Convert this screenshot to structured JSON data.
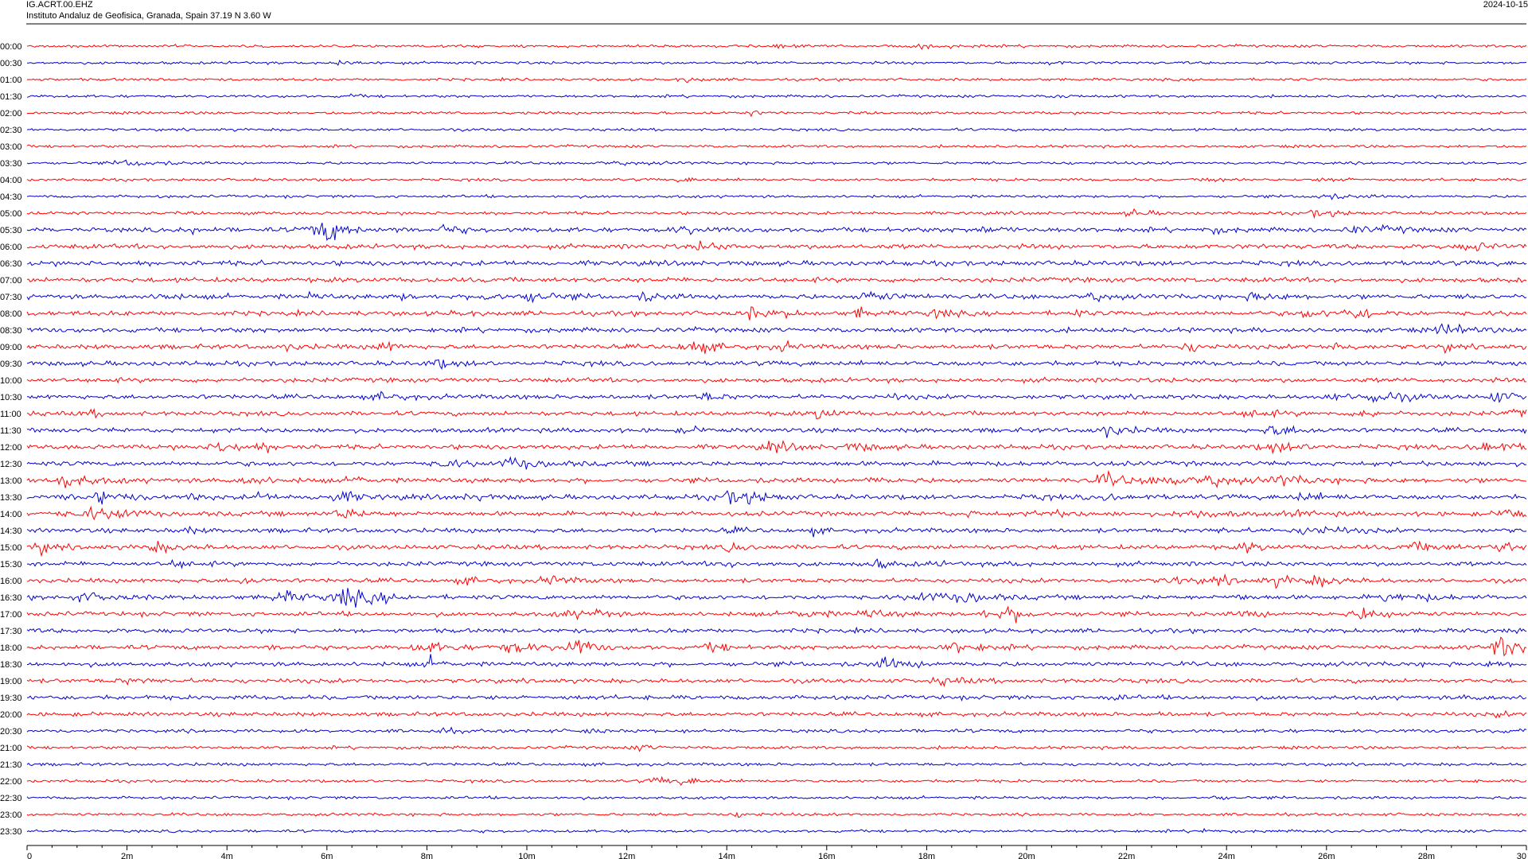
{
  "header": {
    "station": "IG.ACRT.00.EHZ",
    "institute": "Instituto Andaluz de Geofisica, Granada, Spain  37.19 N 3.60 W",
    "date": "2024-10-15"
  },
  "colors": {
    "even_trace": "#ff0000",
    "odd_trace": "#0000cc",
    "axis": "#000000",
    "background": "#ffffff"
  },
  "chart_data": {
    "type": "line",
    "subtype": "helicorder",
    "minutes_per_line": 30,
    "row_labels": [
      "00:00",
      "00:30",
      "01:00",
      "01:30",
      "02:00",
      "02:30",
      "03:00",
      "03:30",
      "04:00",
      "04:30",
      "05:00",
      "05:30",
      "06:00",
      "06:30",
      "07:00",
      "07:30",
      "08:00",
      "08:30",
      "09:00",
      "09:30",
      "10:00",
      "10:30",
      "11:00",
      "11:30",
      "12:00",
      "12:30",
      "13:00",
      "13:30",
      "14:00",
      "14:30",
      "15:00",
      "15:30",
      "16:00",
      "16:30",
      "17:00",
      "17:30",
      "18:00",
      "18:30",
      "19:00",
      "19:30",
      "20:00",
      "20:30",
      "21:00",
      "21:30",
      "22:00",
      "22:30",
      "23:00",
      "23:30"
    ],
    "noise_level": [
      0.12,
      0.12,
      0.11,
      0.11,
      0.11,
      0.12,
      0.12,
      0.12,
      0.12,
      0.14,
      0.22,
      0.55,
      0.6,
      0.62,
      0.6,
      0.6,
      0.6,
      0.58,
      0.58,
      0.58,
      0.55,
      0.55,
      0.55,
      0.55,
      0.58,
      0.6,
      0.62,
      0.62,
      0.58,
      0.55,
      0.58,
      0.55,
      0.52,
      0.55,
      0.52,
      0.5,
      0.52,
      0.52,
      0.5,
      0.48,
      0.45,
      0.3,
      0.2,
      0.2,
      0.16,
      0.15,
      0.14,
      0.14
    ],
    "x_ticks": [
      "0",
      "2m",
      "4m",
      "6m",
      "8m",
      "10m",
      "12m",
      "14m",
      "16m",
      "18m",
      "20m",
      "22m",
      "24m",
      "26m",
      "28m",
      "30"
    ],
    "xlim": [
      0,
      30
    ],
    "grid": false,
    "legend": "none"
  }
}
